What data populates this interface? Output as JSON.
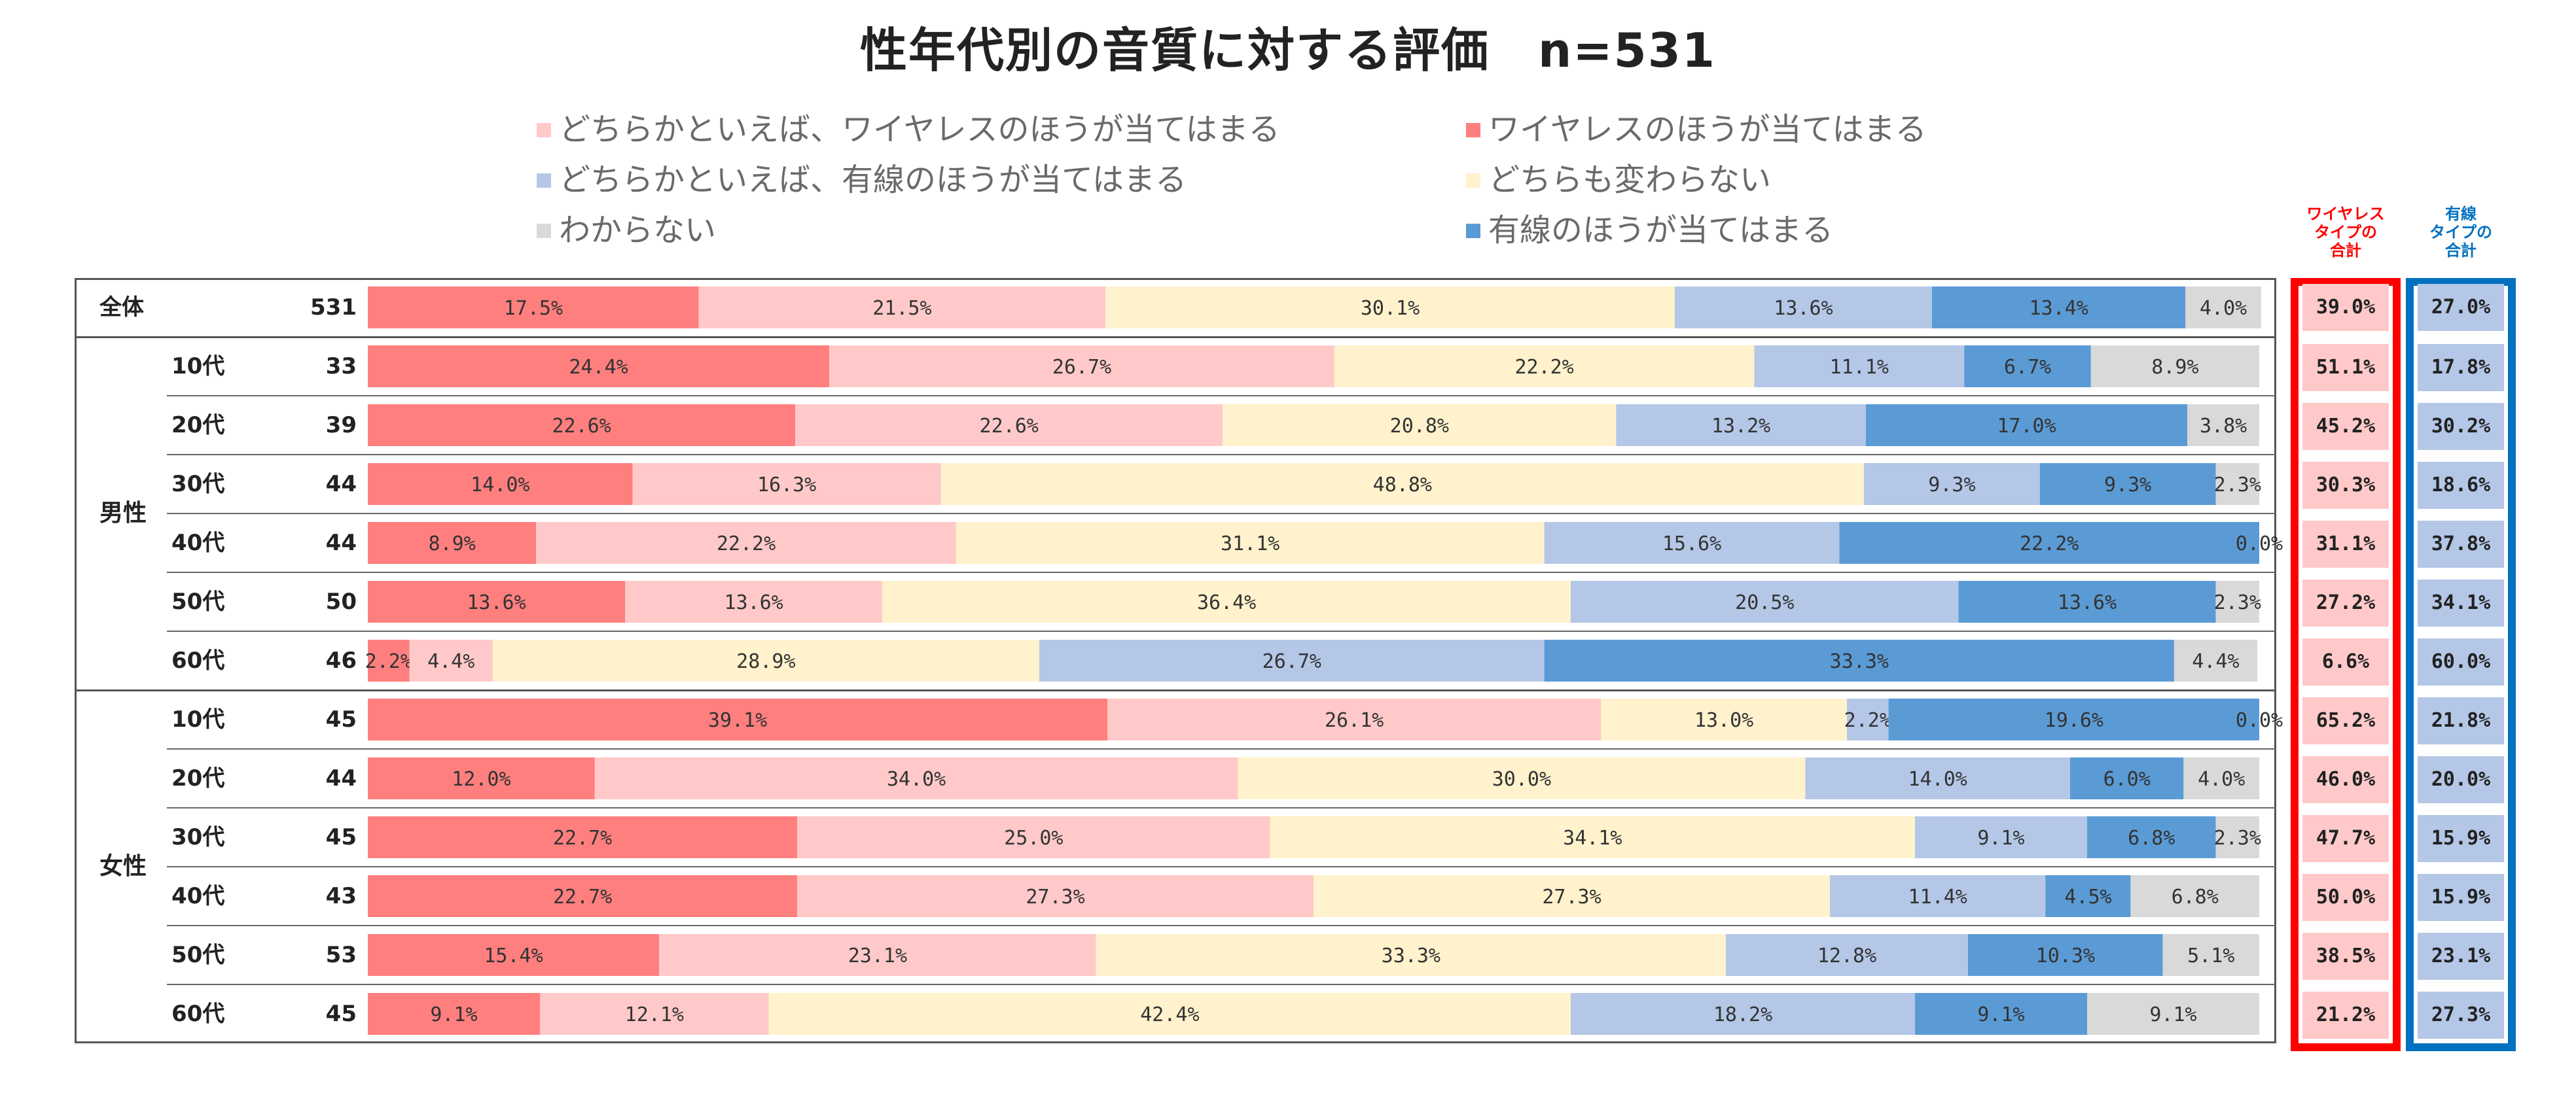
{
  "chart_data": {
    "type": "bar",
    "stacked": true,
    "orientation": "horizontal",
    "percent": true,
    "title": "性年代別の音質に対する評価　n=531",
    "legend_placement": "top",
    "colors": {
      "wireless": "#ff7f7f",
      "rather_wireless": "#ffc9c9",
      "neutral": "#fff2cc",
      "rather_wired": "#b4c7e7",
      "wired": "#5b9bd5",
      "unknown": "#d9d9d9",
      "wireless_total_border": "#ff0000",
      "wired_total_border": "#0070c0",
      "wireless_total_fill": "#ffc9c9",
      "wired_total_fill": "#b4c7e7"
    },
    "legend": [
      {
        "key": "rather_wireless",
        "label": "どちらかといえば、ワイヤレスのほうが当てはまる"
      },
      {
        "key": "wireless",
        "label": "ワイヤレスのほうが当てはまる"
      },
      {
        "key": "rather_wired",
        "label": "どちらかといえば、有線のほうが当てはまる"
      },
      {
        "key": "neutral",
        "label": "どちらも変わらない"
      },
      {
        "key": "unknown",
        "label": "わからない"
      },
      {
        "key": "wired",
        "label": "有線のほうが当てはまる"
      }
    ],
    "segment_order": [
      "wireless",
      "rather_wireless",
      "neutral",
      "rather_wired",
      "wired",
      "unknown"
    ],
    "categories": [
      "全体",
      "10代",
      "20代",
      "30代",
      "40代",
      "50代",
      "60代",
      "10代",
      "20代",
      "30代",
      "40代",
      "50代",
      "60代"
    ],
    "groups": [
      {
        "label": "",
        "rows": [
          0
        ]
      },
      {
        "label": "男性",
        "rows": [
          1,
          2,
          3,
          4,
          5,
          6
        ]
      },
      {
        "label": "女性",
        "rows": [
          7,
          8,
          9,
          10,
          11,
          12
        ]
      }
    ],
    "n": [
      531,
      33,
      39,
      44,
      44,
      50,
      46,
      45,
      44,
      45,
      43,
      53,
      45
    ],
    "series": [
      {
        "name": "ワイヤレスのほうが当てはまる",
        "key": "wireless",
        "values": [
          17.5,
          24.4,
          22.6,
          14.0,
          8.9,
          13.6,
          2.2,
          39.1,
          12.0,
          22.7,
          22.7,
          15.4,
          9.1
        ]
      },
      {
        "name": "どちらかといえば、ワイヤレスのほうが当てはまる",
        "key": "rather_wireless",
        "values": [
          21.5,
          26.7,
          22.6,
          16.3,
          22.2,
          13.6,
          4.4,
          26.1,
          34.0,
          25.0,
          27.3,
          23.1,
          12.1
        ]
      },
      {
        "name": "どちらも変わらない",
        "key": "neutral",
        "values": [
          30.1,
          22.2,
          20.8,
          48.8,
          31.1,
          36.4,
          28.9,
          13.0,
          30.0,
          34.1,
          27.3,
          33.3,
          42.4
        ]
      },
      {
        "name": "どちらかといえば、有線のほうが当てはまる",
        "key": "rather_wired",
        "values": [
          13.6,
          11.1,
          13.2,
          9.3,
          15.6,
          20.5,
          26.7,
          2.2,
          14.0,
          9.1,
          11.4,
          12.8,
          18.2
        ]
      },
      {
        "name": "有線のほうが当てはまる",
        "key": "wired",
        "values": [
          13.4,
          6.7,
          17.0,
          9.3,
          22.2,
          13.6,
          33.3,
          19.6,
          6.0,
          6.8,
          4.5,
          10.3,
          9.1
        ]
      },
      {
        "name": "わからない",
        "key": "unknown",
        "values": [
          4.0,
          8.9,
          3.8,
          2.3,
          0.0,
          2.3,
          4.4,
          0.0,
          4.0,
          2.3,
          6.8,
          5.1,
          9.1
        ]
      }
    ],
    "value_labels": [
      [
        "17.5%",
        "21.5%",
        "30.1%",
        "13.6%",
        "13.4%",
        "4.0%"
      ],
      [
        "24.4%",
        "26.7%",
        "22.2%",
        "11.1%",
        "6.7%",
        "8.9%"
      ],
      [
        "22.6%",
        "22.6%",
        "20.8%",
        "13.2%",
        "17.0%",
        "3.8%"
      ],
      [
        "14.0%",
        "16.3%",
        "48.8%",
        "9.3%",
        "9.3%",
        "2.3%"
      ],
      [
        "8.9%",
        "22.2%",
        "31.1%",
        "15.6%",
        "22.2%",
        "0.0%"
      ],
      [
        "13.6%",
        "13.6%",
        "36.4%",
        "20.5%",
        "13.6%",
        "2.3%"
      ],
      [
        "2.2%",
        "4.4%",
        "28.9%",
        "26.7%",
        "33.3%",
        "4.4%"
      ],
      [
        "39.1%",
        "26.1%",
        "13.0%",
        "2.2%",
        "19.6%",
        "0.0%"
      ],
      [
        "12.0%",
        "34.0%",
        "30.0%",
        "14.0%",
        "6.0%",
        "4.0%"
      ],
      [
        "22.7%",
        "25.0%",
        "34.1%",
        "9.1%",
        "6.8%",
        "2.3%"
      ],
      [
        "22.7%",
        "27.3%",
        "27.3%",
        "11.4%",
        "4.5%",
        "6.8%"
      ],
      [
        "15.4%",
        "23.1%",
        "33.3%",
        "12.8%",
        "10.3%",
        "5.1%"
      ],
      [
        "9.1%",
        "12.1%",
        "42.4%",
        "18.2%",
        "9.1%",
        "9.1%"
      ]
    ],
    "totals": {
      "wireless": {
        "header": [
          "ワイヤレス",
          "タイプの",
          "合計"
        ],
        "values": [
          "39.0%",
          "51.1%",
          "45.2%",
          "30.3%",
          "31.1%",
          "27.2%",
          "6.6%",
          "65.2%",
          "46.0%",
          "47.7%",
          "50.0%",
          "38.5%",
          "21.2%"
        ]
      },
      "wired": {
        "header": [
          "有線",
          "タイプの",
          "合計"
        ],
        "values": [
          "27.0%",
          "17.8%",
          "30.2%",
          "18.6%",
          "37.8%",
          "34.1%",
          "60.0%",
          "21.8%",
          "20.0%",
          "15.9%",
          "15.9%",
          "23.1%",
          "27.3%"
        ]
      }
    },
    "xlim": [
      0,
      100
    ]
  }
}
